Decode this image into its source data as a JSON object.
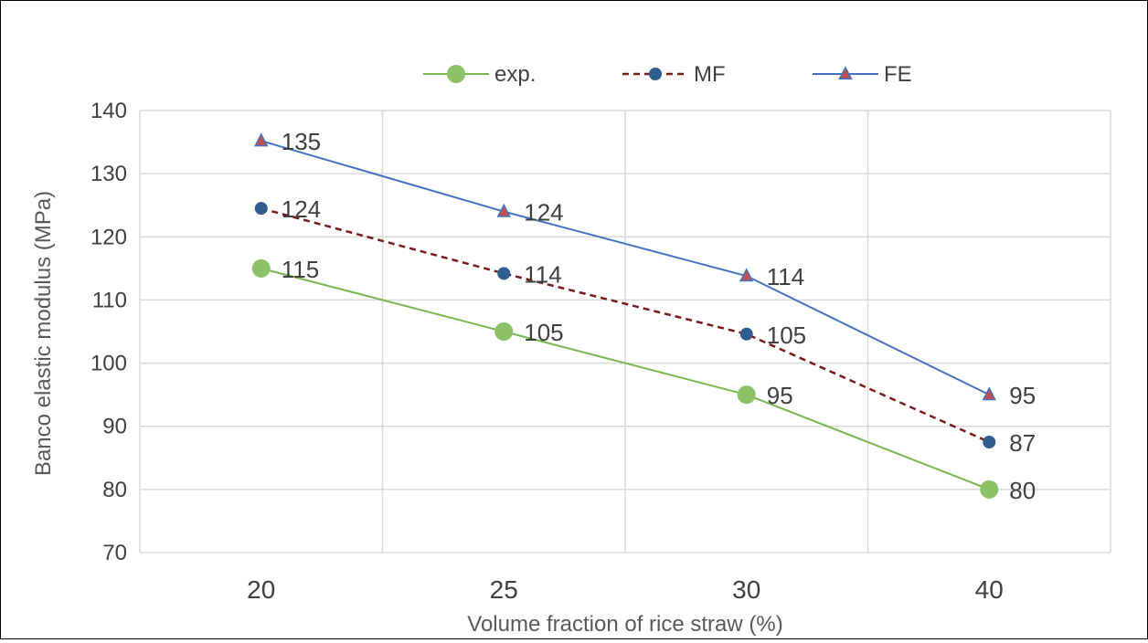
{
  "chart_data": {
    "type": "line",
    "title": "",
    "xlabel": "Volume fraction of rice straw (%)",
    "ylabel": "Banco elastic modulus (MPa)",
    "categories": [
      "20",
      "25",
      "30",
      "40"
    ],
    "ylim": [
      70,
      140
    ],
    "yticks": [
      "70",
      "80",
      "90",
      "100",
      "110",
      "120",
      "130",
      "140"
    ],
    "grid": true,
    "legend_position": "top",
    "series": [
      {
        "name": "exp.",
        "values": [
          115,
          105,
          95,
          80
        ],
        "labels": [
          "115",
          "105",
          "95",
          "80"
        ],
        "color": "#8CC168",
        "line_color": "#79B752",
        "marker": "circle",
        "line_style": "solid"
      },
      {
        "name": "MF",
        "values": [
          124.5,
          114.2,
          104.6,
          87.5
        ],
        "labels": [
          "124",
          "114",
          "105",
          "87"
        ],
        "color": "#2E5D8E",
        "line_color": "#7A1A1A",
        "marker": "circle",
        "line_style": "dashed"
      },
      {
        "name": "FE",
        "values": [
          135.2,
          124,
          113.8,
          95
        ],
        "labels": [
          "135",
          "124",
          "114",
          "95"
        ],
        "color": "#C0504D",
        "line_color": "#4472C4",
        "marker": "triangle",
        "line_style": "solid"
      }
    ]
  }
}
